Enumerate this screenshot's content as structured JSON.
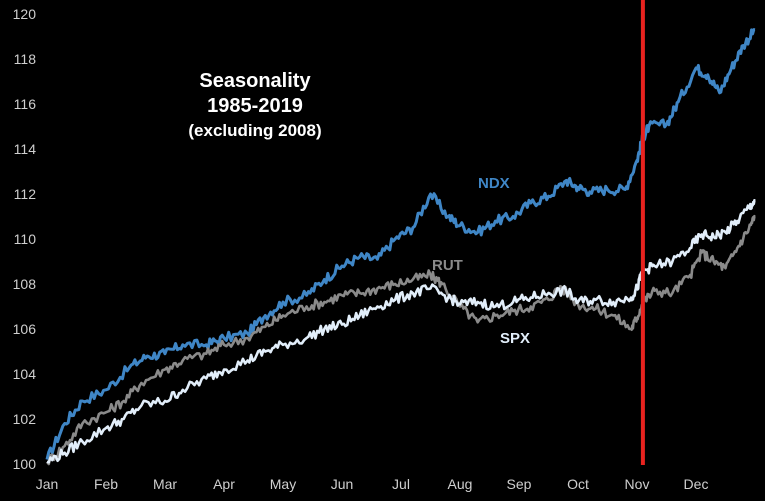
{
  "chart_data": {
    "type": "line",
    "title": [
      "Seasonality",
      "1985-2019",
      "(excluding 2008)"
    ],
    "xlabel": "",
    "ylabel": "",
    "x_range": [
      0,
      12
    ],
    "ylim": [
      100,
      120
    ],
    "y_ticks": [
      100,
      102,
      104,
      106,
      108,
      110,
      112,
      114,
      116,
      118,
      120
    ],
    "categories": [
      "Jan",
      "Feb",
      "Mar",
      "Apr",
      "May",
      "Jun",
      "Jul",
      "Aug",
      "Sep",
      "Oct",
      "Nov",
      "Dec"
    ],
    "grid": false,
    "marker_line": {
      "x": 10.1,
      "color": "#e8231f"
    },
    "series": [
      {
        "name": "NDX",
        "color": "#3f86c6",
        "points": [
          [
            0,
            100.2
          ],
          [
            0.3,
            101.8
          ],
          [
            0.6,
            102.8
          ],
          [
            1,
            103.3
          ],
          [
            1.4,
            104.3
          ],
          [
            1.7,
            104.8
          ],
          [
            2,
            104.9
          ],
          [
            2.3,
            105.3
          ],
          [
            2.7,
            105.3
          ],
          [
            3,
            105.6
          ],
          [
            3.4,
            105.8
          ],
          [
            3.7,
            106.6
          ],
          [
            4,
            107.2
          ],
          [
            4.4,
            107.5
          ],
          [
            4.7,
            108.2
          ],
          [
            5,
            108.8
          ],
          [
            5.3,
            109.2
          ],
          [
            5.6,
            109.1
          ],
          [
            5.9,
            110.0
          ],
          [
            6.2,
            110.5
          ],
          [
            6.5,
            112.0
          ],
          [
            6.8,
            111.0
          ],
          [
            7,
            110.6
          ],
          [
            7.3,
            110.3
          ],
          [
            7.6,
            110.8
          ],
          [
            7.9,
            111.0
          ],
          [
            8.2,
            111.6
          ],
          [
            8.5,
            111.9
          ],
          [
            8.8,
            112.6
          ],
          [
            9,
            112.3
          ],
          [
            9.2,
            112.1
          ],
          [
            9.5,
            112.2
          ],
          [
            9.8,
            112.2
          ],
          [
            10,
            113.5
          ],
          [
            10.1,
            114.5
          ],
          [
            10.2,
            115.0
          ],
          [
            10.5,
            115.1
          ],
          [
            10.7,
            116.1
          ],
          [
            11,
            117.6
          ],
          [
            11.2,
            117.3
          ],
          [
            11.4,
            116.5
          ],
          [
            11.6,
            117.6
          ],
          [
            11.8,
            118.6
          ],
          [
            12,
            119.3
          ]
        ]
      },
      {
        "name": "RUT",
        "color": "#8a8a8a",
        "points": [
          [
            0,
            100.1
          ],
          [
            0.3,
            100.8
          ],
          [
            0.6,
            101.8
          ],
          [
            1,
            102.3
          ],
          [
            1.3,
            102.8
          ],
          [
            1.6,
            103.6
          ],
          [
            2,
            104.2
          ],
          [
            2.3,
            104.6
          ],
          [
            2.7,
            104.9
          ],
          [
            3,
            105.3
          ],
          [
            3.4,
            105.6
          ],
          [
            3.7,
            106.1
          ],
          [
            4,
            106.6
          ],
          [
            4.4,
            107.0
          ],
          [
            4.7,
            107.2
          ],
          [
            5,
            107.5
          ],
          [
            5.3,
            107.6
          ],
          [
            5.6,
            107.8
          ],
          [
            5.9,
            108.0
          ],
          [
            6.2,
            108.2
          ],
          [
            6.5,
            108.4
          ],
          [
            6.7,
            108.0
          ],
          [
            7,
            107.0
          ],
          [
            7.3,
            106.3
          ],
          [
            7.6,
            106.6
          ],
          [
            7.9,
            106.8
          ],
          [
            8.2,
            107.0
          ],
          [
            8.5,
            107.3
          ],
          [
            8.7,
            107.9
          ],
          [
            9,
            107.1
          ],
          [
            9.3,
            106.9
          ],
          [
            9.6,
            106.6
          ],
          [
            9.9,
            106.0
          ],
          [
            10,
            106.5
          ],
          [
            10.1,
            107.2
          ],
          [
            10.3,
            107.7
          ],
          [
            10.6,
            107.6
          ],
          [
            10.9,
            108.4
          ],
          [
            11.1,
            109.4
          ],
          [
            11.3,
            109.0
          ],
          [
            11.5,
            108.7
          ],
          [
            11.7,
            109.6
          ],
          [
            11.9,
            110.5
          ],
          [
            12,
            111.0
          ]
        ]
      },
      {
        "name": "SPX",
        "color": "#e2eefa",
        "points": [
          [
            0,
            100.1
          ],
          [
            0.3,
            100.5
          ],
          [
            0.6,
            101.0
          ],
          [
            1,
            101.6
          ],
          [
            1.3,
            102.0
          ],
          [
            1.6,
            102.6
          ],
          [
            2,
            102.8
          ],
          [
            2.3,
            103.3
          ],
          [
            2.7,
            103.8
          ],
          [
            3,
            104.2
          ],
          [
            3.4,
            104.6
          ],
          [
            3.7,
            105.0
          ],
          [
            4,
            105.3
          ],
          [
            4.4,
            105.6
          ],
          [
            4.7,
            106.0
          ],
          [
            5,
            106.2
          ],
          [
            5.3,
            106.6
          ],
          [
            5.6,
            107.0
          ],
          [
            5.9,
            107.3
          ],
          [
            6.2,
            107.6
          ],
          [
            6.5,
            107.8
          ],
          [
            6.8,
            107.4
          ],
          [
            7,
            107.1
          ],
          [
            7.3,
            107.2
          ],
          [
            7.6,
            107.0
          ],
          [
            7.9,
            107.2
          ],
          [
            8.2,
            107.4
          ],
          [
            8.5,
            107.6
          ],
          [
            8.8,
            107.7
          ],
          [
            9,
            107.2
          ],
          [
            9.3,
            107.3
          ],
          [
            9.6,
            107.2
          ],
          [
            9.9,
            107.4
          ],
          [
            10,
            107.8
          ],
          [
            10.1,
            108.6
          ],
          [
            10.3,
            108.8
          ],
          [
            10.6,
            109.0
          ],
          [
            10.9,
            109.6
          ],
          [
            11.1,
            110.2
          ],
          [
            11.3,
            110.1
          ],
          [
            11.5,
            110.3
          ],
          [
            11.7,
            110.8
          ],
          [
            11.9,
            111.4
          ],
          [
            12,
            111.7
          ]
        ]
      }
    ]
  }
}
